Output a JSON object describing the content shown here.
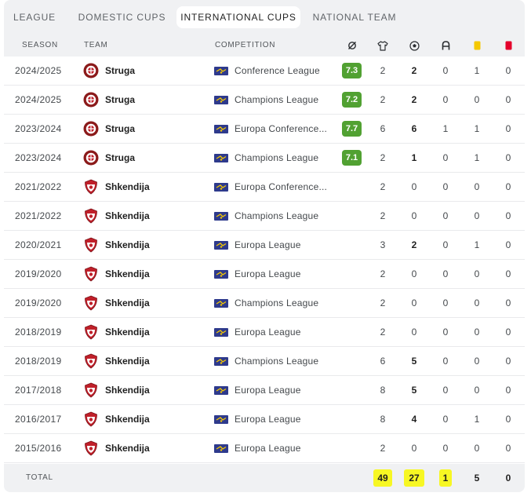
{
  "tabs": [
    {
      "label": "LEAGUE",
      "active": false
    },
    {
      "label": "DOMESTIC CUPS",
      "active": false
    },
    {
      "label": "INTERNATIONAL CUPS",
      "active": true
    },
    {
      "label": "NATIONAL TEAM",
      "active": false
    }
  ],
  "header": {
    "season": "SEASON",
    "team": "TEAM",
    "competition": "COMPETITION",
    "icons": [
      "rating-icon",
      "shirt-icon",
      "ball-icon",
      "assist-icon",
      "yellow-card-icon",
      "red-card-icon"
    ]
  },
  "colors": {
    "rating_bg": "#51a132",
    "highlight": "#f7f723",
    "yellow_card": "#f5c800",
    "red_card": "#e4002b",
    "struga_crest": "#8b1a1a",
    "shkendija_crest": "#c0202a"
  },
  "rows": [
    {
      "season": "2024/2025",
      "team": "Struga",
      "crest": "struga",
      "competition": "Conference League",
      "rating": "7.3",
      "apps": "2",
      "goals": "2",
      "assists": "0",
      "yellow": "1",
      "red": "0"
    },
    {
      "season": "2024/2025",
      "team": "Struga",
      "crest": "struga",
      "competition": "Champions League",
      "rating": "7.2",
      "apps": "2",
      "goals": "2",
      "assists": "0",
      "yellow": "0",
      "red": "0"
    },
    {
      "season": "2023/2024",
      "team": "Struga",
      "crest": "struga",
      "competition": "Europa Conference...",
      "rating": "7.7",
      "apps": "6",
      "goals": "6",
      "assists": "1",
      "yellow": "1",
      "red": "0"
    },
    {
      "season": "2023/2024",
      "team": "Struga",
      "crest": "struga",
      "competition": "Champions League",
      "rating": "7.1",
      "apps": "2",
      "goals": "1",
      "assists": "0",
      "yellow": "1",
      "red": "0"
    },
    {
      "season": "2021/2022",
      "team": "Shkendija",
      "crest": "shkendija",
      "competition": "Europa Conference...",
      "rating": "",
      "apps": "2",
      "goals": "0",
      "assists": "0",
      "yellow": "0",
      "red": "0"
    },
    {
      "season": "2021/2022",
      "team": "Shkendija",
      "crest": "shkendija",
      "competition": "Champions League",
      "rating": "",
      "apps": "2",
      "goals": "0",
      "assists": "0",
      "yellow": "0",
      "red": "0"
    },
    {
      "season": "2020/2021",
      "team": "Shkendija",
      "crest": "shkendija",
      "competition": "Europa League",
      "rating": "",
      "apps": "3",
      "goals": "2",
      "assists": "0",
      "yellow": "1",
      "red": "0"
    },
    {
      "season": "2019/2020",
      "team": "Shkendija",
      "crest": "shkendija",
      "competition": "Europa League",
      "rating": "",
      "apps": "2",
      "goals": "0",
      "assists": "0",
      "yellow": "0",
      "red": "0"
    },
    {
      "season": "2019/2020",
      "team": "Shkendija",
      "crest": "shkendija",
      "competition": "Champions League",
      "rating": "",
      "apps": "2",
      "goals": "0",
      "assists": "0",
      "yellow": "0",
      "red": "0"
    },
    {
      "season": "2018/2019",
      "team": "Shkendija",
      "crest": "shkendija",
      "competition": "Europa League",
      "rating": "",
      "apps": "2",
      "goals": "0",
      "assists": "0",
      "yellow": "0",
      "red": "0"
    },
    {
      "season": "2018/2019",
      "team": "Shkendija",
      "crest": "shkendija",
      "competition": "Champions League",
      "rating": "",
      "apps": "6",
      "goals": "5",
      "assists": "0",
      "yellow": "0",
      "red": "0"
    },
    {
      "season": "2017/2018",
      "team": "Shkendija",
      "crest": "shkendija",
      "competition": "Europa League",
      "rating": "",
      "apps": "8",
      "goals": "5",
      "assists": "0",
      "yellow": "0",
      "red": "0"
    },
    {
      "season": "2016/2017",
      "team": "Shkendija",
      "crest": "shkendija",
      "competition": "Europa League",
      "rating": "",
      "apps": "8",
      "goals": "4",
      "assists": "0",
      "yellow": "1",
      "red": "0"
    },
    {
      "season": "2015/2016",
      "team": "Shkendija",
      "crest": "shkendija",
      "competition": "Europa League",
      "rating": "",
      "apps": "2",
      "goals": "0",
      "assists": "0",
      "yellow": "0",
      "red": "0"
    }
  ],
  "total": {
    "label": "TOTAL",
    "apps": "49",
    "goals": "27",
    "assists": "1",
    "yellow": "5",
    "red": "0"
  }
}
